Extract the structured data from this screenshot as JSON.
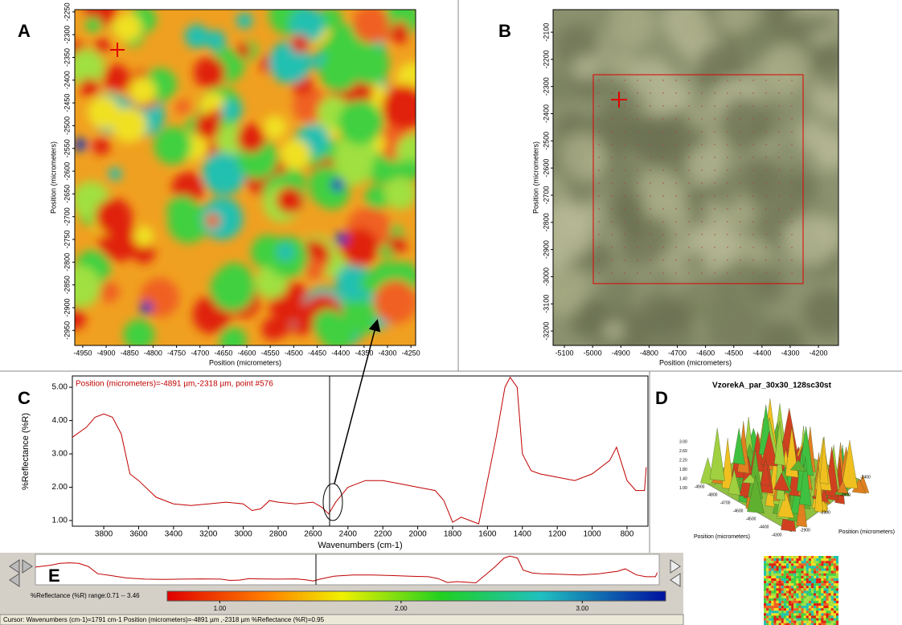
{
  "panels": {
    "a": {
      "label": "A",
      "xlabel": "Position (micrometers)",
      "ylabel": "Position (micrometers)",
      "xlim": [
        -4967,
        -4240
      ],
      "ylim": [
        -2983,
        -2245
      ],
      "xticks": [
        -4950,
        -4900,
        -4850,
        -4800,
        -4750,
        -4700,
        -4650,
        -4600,
        -4550,
        -4500,
        -4450,
        -4400,
        -4350,
        -4300,
        -4250
      ],
      "yticks": [
        -2950,
        -2900,
        -2850,
        -2800,
        -2750,
        -2700,
        -2650,
        -2600,
        -2550,
        -2500,
        -2450,
        -2400,
        -2350,
        -2300,
        -2250
      ]
    },
    "b": {
      "label": "B",
      "xlabel": "Position (micrometers)",
      "ylabel": "Position (micrometers)",
      "xlim": [
        -5140,
        -4129
      ],
      "ylim": [
        -3253,
        -2017
      ],
      "xticks": [
        -5100,
        -5000,
        -4900,
        -4800,
        -4700,
        -4600,
        -4500,
        -4400,
        -4300,
        -4200
      ],
      "yticks": [
        -3200,
        -3100,
        -3000,
        -2900,
        -2800,
        -2700,
        -2600,
        -2500,
        -2400,
        -2300,
        -2200,
        -2100
      ]
    },
    "c": {
      "label": "C",
      "type": "line",
      "annotation": "Position (micrometers)=-4891 µm,-2318 µm, point #576",
      "xlabel": "Wavenumbers (cm-1)",
      "ylabel": "%Reflectance (%R)",
      "color": "#c00000",
      "xlim": [
        3980,
        680
      ],
      "ylim": [
        0.83,
        5.34
      ],
      "xticks": [
        3800,
        3600,
        3400,
        3200,
        3000,
        2800,
        2600,
        2400,
        2200,
        2000,
        1800,
        1600,
        1400,
        1200,
        1000,
        800
      ],
      "yticks": [
        {
          "value": 1,
          "label": "1.00"
        },
        {
          "value": 2,
          "label": "2.00"
        },
        {
          "value": 3,
          "label": "3.00"
        },
        {
          "value": 4,
          "label": "4.00"
        },
        {
          "value": 5,
          "label": "5.00"
        }
      ],
      "x": [
        3980,
        3900,
        3850,
        3800,
        3750,
        3700,
        3650,
        3600,
        3500,
        3400,
        3300,
        3200,
        3100,
        3000,
        2950,
        2900,
        2850,
        2800,
        2700,
        2600,
        2550,
        2510,
        2470,
        2400,
        2300,
        2200,
        2100,
        2000,
        1900,
        1850,
        1800,
        1750,
        1700,
        1650,
        1600,
        1550,
        1500,
        1470,
        1430,
        1400,
        1350,
        1300,
        1200,
        1100,
        1000,
        900,
        860,
        800,
        750,
        700,
        690
      ],
      "values": [
        3.5,
        3.8,
        4.1,
        4.2,
        4.1,
        3.6,
        2.4,
        2.2,
        1.7,
        1.5,
        1.45,
        1.5,
        1.55,
        1.5,
        1.3,
        1.35,
        1.6,
        1.55,
        1.5,
        1.55,
        1.4,
        1.2,
        1.55,
        2.0,
        2.2,
        2.2,
        2.1,
        2.0,
        1.9,
        1.6,
        0.95,
        1.1,
        1.0,
        0.9,
        2.2,
        3.5,
        5.0,
        5.3,
        5.0,
        3.0,
        2.5,
        2.4,
        2.3,
        2.2,
        2.4,
        2.8,
        3.2,
        2.2,
        1.9,
        1.9,
        2.6
      ]
    },
    "d": {
      "label": "D",
      "title": "VzorekA_par_30x30_128sc30st",
      "xlabel": "Position (micrometers)",
      "ylabel": "Position (micrometers)",
      "zticks": [
        "3.00",
        "2.60",
        "2.20",
        "1.80",
        "1.40",
        "1.00"
      ],
      "xticks": [
        "-4900",
        "-4800",
        "-4700",
        "-4600",
        "-4500",
        "-4400",
        "-4300"
      ],
      "yticks": [
        "-2900",
        "-2800",
        "-2600",
        "-2400"
      ]
    },
    "e": {
      "label": "E",
      "range_label": "%Reflectance (%R) range:0.71 -- 3.46",
      "colorbar_lim": [
        0.71,
        3.46
      ],
      "colorbar_ticks": [
        {
          "value": 1,
          "label": "1.00"
        },
        {
          "value": 2,
          "label": "2.00"
        },
        {
          "value": 3,
          "label": "3.00"
        }
      ]
    },
    "status": "Cursor: Wavenumbers (cm-1)=1791 cm-1  Position (micrometers)=-4891 µm ,-2318 µm  %Reflectance (%R)=0.95"
  }
}
